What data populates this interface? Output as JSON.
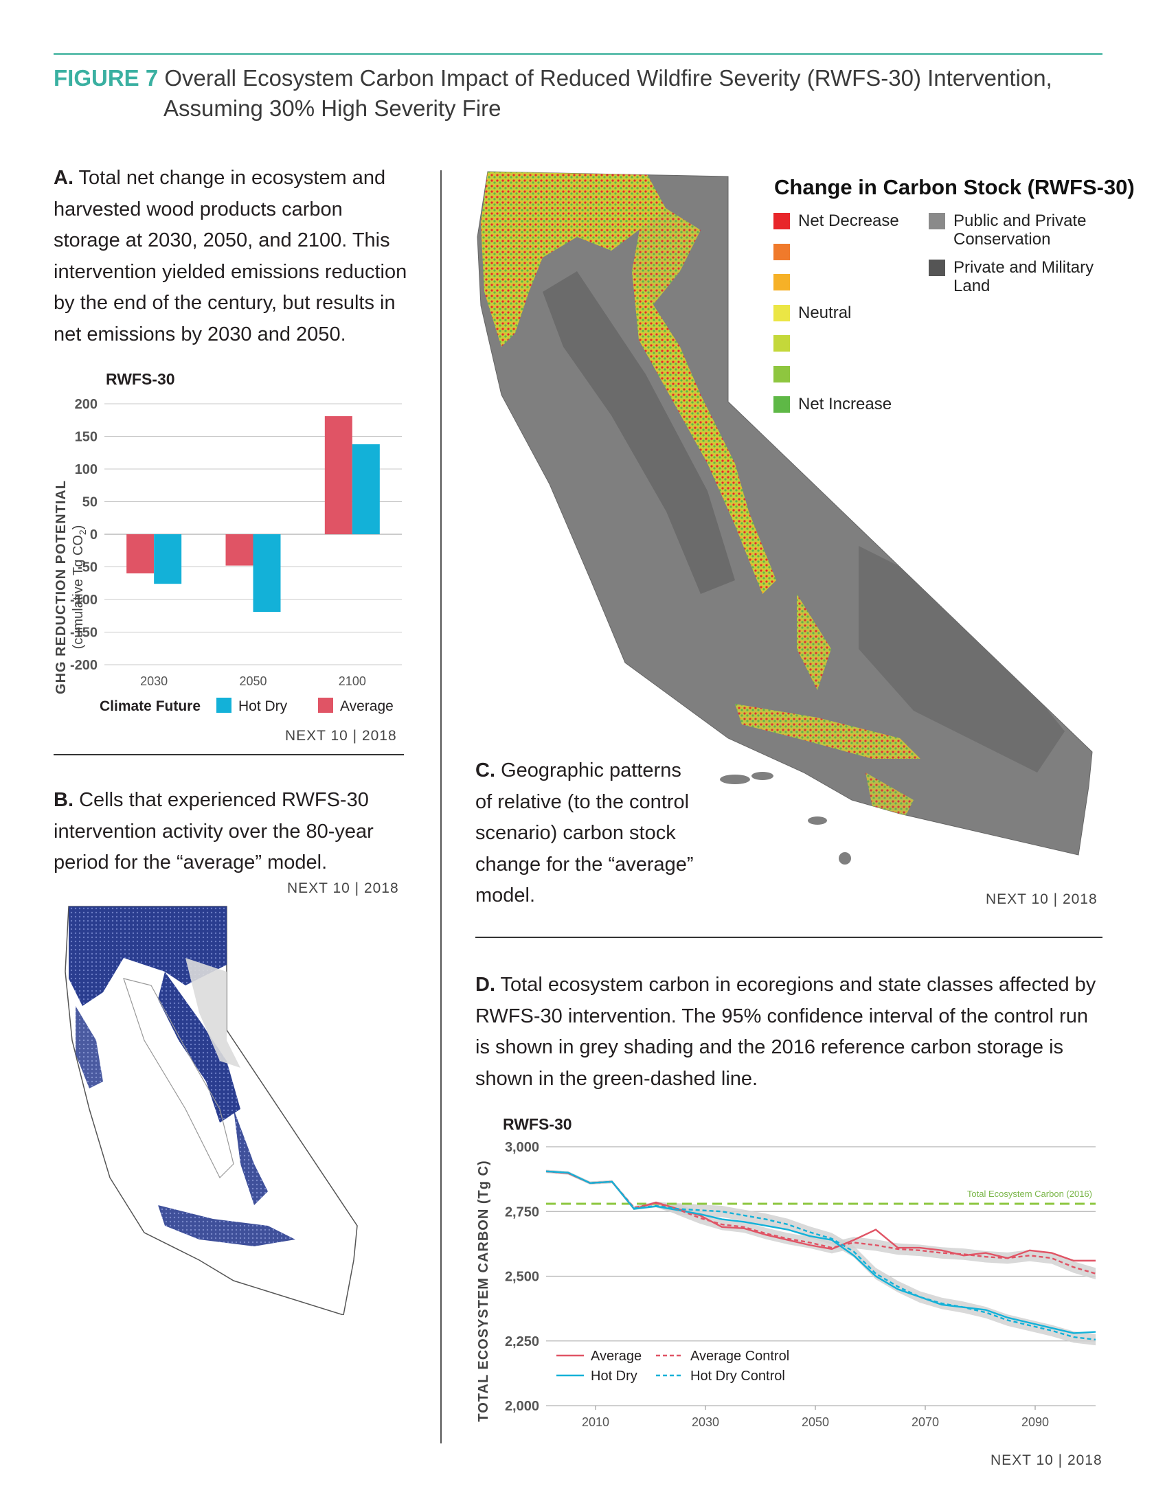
{
  "figure": {
    "label": "FIGURE 7",
    "title_line1": "Overall Ecosystem Carbon Impact of Reduced Wildfire Severity (RWFS-30) Intervention,",
    "title_line2": "Assuming 30% High Severity Fire"
  },
  "panel_a": {
    "letter": "A.",
    "text": "Total net change in ecosystem and harvested wood products carbon storage at 2030, 2050, and 2100. This intervention yielded emissions reduction by the end of the century, but results in net emissions by 2030 and 2050.",
    "credit": "NEXT 10 | 2018"
  },
  "panel_b": {
    "letter": "B.",
    "text": "Cells that experienced RWFS-30 intervention activity over the 80-year period for the “average” model.",
    "credit": "NEXT 10 | 2018"
  },
  "panel_c": {
    "letter": "C.",
    "text": "Geographic patterns of relative (to the control scenario) carbon stock change for the “average” model.",
    "credit": "NEXT 10 | 2018",
    "legend_title": "Change in Carbon Stock (RWFS-30)",
    "legend": [
      {
        "label": "Net Decrease",
        "color": "#e8262a"
      },
      {
        "label": "",
        "color": "#f07a2b"
      },
      {
        "label": "",
        "color": "#f6b127"
      },
      {
        "label": "Neutral",
        "color": "#ebe645"
      },
      {
        "label": "",
        "color": "#c4d83a"
      },
      {
        "label": "",
        "color": "#8ec63f"
      },
      {
        "label": "Net Increase",
        "color": "#5eb846"
      }
    ],
    "legend_right": [
      {
        "label": "Public and Private Conservation",
        "color": "#8a8a8a"
      },
      {
        "label": "Private and Military Land",
        "color": "#555555"
      }
    ]
  },
  "panel_d": {
    "letter": "D.",
    "text": "Total ecosystem carbon in ecoregions and state classes affected by RWFS-30 intervention. The 95% confidence interval of the control run is shown in grey shading and the 2016 reference carbon storage is shown in the green-dashed line.",
    "credit": "NEXT 10 | 2018"
  },
  "chart_data": [
    {
      "type": "bar",
      "title": "RWFS-30",
      "ylabel": "GHG REDUCTION POTENTIAL",
      "ylabel_sub": "(cumulative Tg CO",
      "ylabel_sub_subscript": "2",
      "ylabel_sub_end": ")",
      "ylim": [
        -200,
        200
      ],
      "yticks": [
        "200",
        "150",
        "100",
        "50",
        "0",
        "-50",
        "-100",
        "-150",
        "-200"
      ],
      "categories": [
        "2030",
        "2050",
        "2100"
      ],
      "legend_title": "Climate Future",
      "series": [
        {
          "name": "Average",
          "color": "#e05465",
          "values": [
            -60,
            -48,
            181
          ]
        },
        {
          "name": "Hot Dry",
          "color": "#13b1d8",
          "values": [
            -76,
            -119,
            138
          ]
        }
      ]
    },
    {
      "type": "line",
      "title": "RWFS-30",
      "ylabel": "TOTAL ECOSYSTEM CARBON (Tg C)",
      "ylim": [
        2000,
        3000
      ],
      "xlim": [
        2001,
        2101
      ],
      "yticks": [
        "3,000",
        "2,750",
        "2,500",
        "2,250",
        "2,000"
      ],
      "xticks": [
        "2010",
        "2030",
        "2050",
        "2070",
        "2090"
      ],
      "reference": {
        "label": "Total Ecosystem Carbon (2016)",
        "value": 2780,
        "color": "#8cc63f"
      },
      "x": [
        2001,
        2005,
        2009,
        2013,
        2017,
        2021,
        2025,
        2029,
        2033,
        2037,
        2041,
        2045,
        2049,
        2053,
        2057,
        2061,
        2065,
        2069,
        2073,
        2077,
        2081,
        2085,
        2089,
        2093,
        2097,
        2101
      ],
      "series": [
        {
          "name": "Average",
          "color": "#e05465",
          "dash": false,
          "values": [
            2905,
            2898,
            2860,
            2865,
            2760,
            2785,
            2760,
            2735,
            2690,
            2685,
            2660,
            2640,
            2620,
            2605,
            2640,
            2680,
            2610,
            2610,
            2600,
            2580,
            2590,
            2570,
            2600,
            2590,
            2560,
            2560
          ]
        },
        {
          "name": "Hot Dry",
          "color": "#13b1d8",
          "dash": false,
          "values": [
            2905,
            2900,
            2860,
            2865,
            2760,
            2770,
            2755,
            2740,
            2720,
            2710,
            2695,
            2680,
            2655,
            2640,
            2580,
            2500,
            2450,
            2420,
            2390,
            2380,
            2370,
            2340,
            2320,
            2300,
            2280,
            2285
          ]
        },
        {
          "name": "Average Control",
          "color": "#e05465",
          "dash": true,
          "values": [
            2905,
            2898,
            2860,
            2865,
            2765,
            2782,
            2758,
            2725,
            2700,
            2690,
            2665,
            2645,
            2630,
            2610,
            2630,
            2620,
            2605,
            2600,
            2590,
            2585,
            2575,
            2570,
            2580,
            2570,
            2535,
            2510
          ]
        },
        {
          "name": "Hot Dry Control",
          "color": "#13b1d8",
          "dash": true,
          "values": [
            2905,
            2900,
            2860,
            2865,
            2762,
            2772,
            2760,
            2755,
            2750,
            2735,
            2720,
            2700,
            2670,
            2645,
            2595,
            2510,
            2460,
            2420,
            2395,
            2380,
            2360,
            2330,
            2310,
            2290,
            2265,
            2255
          ]
        }
      ]
    }
  ]
}
